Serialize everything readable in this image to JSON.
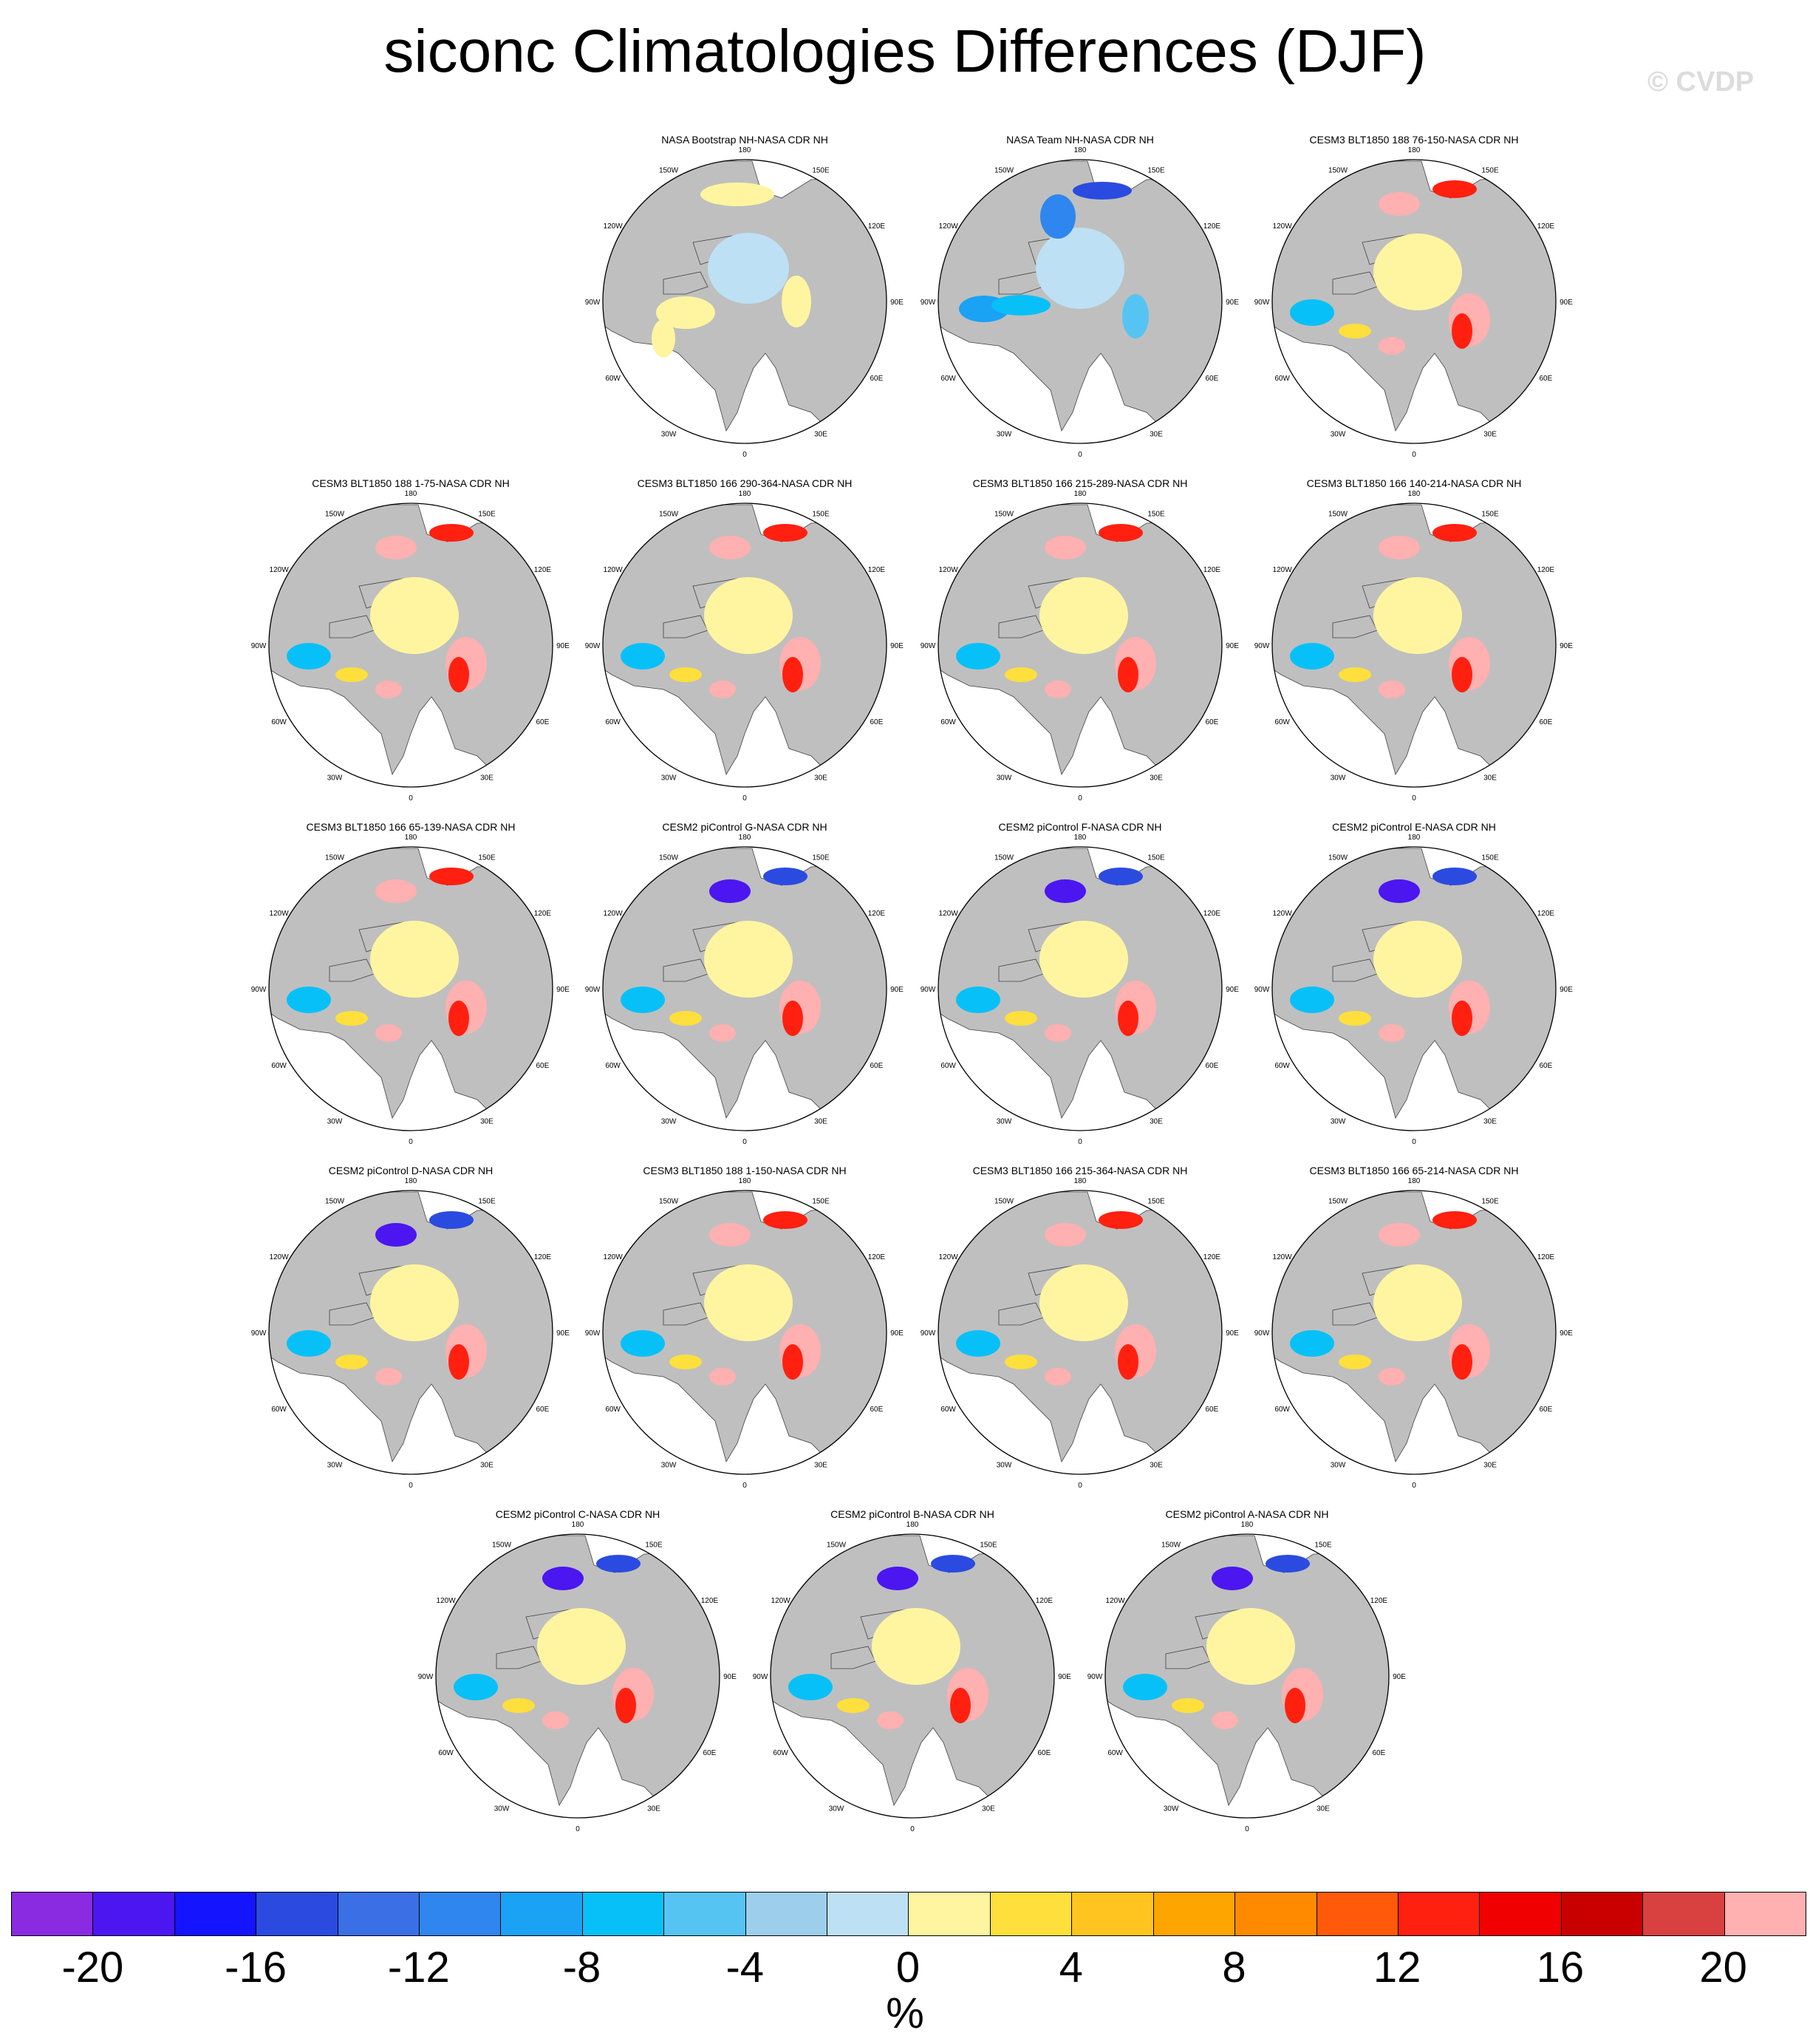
{
  "title": "siconc Climatologies Differences (DJF)",
  "watermark": "© CVDP",
  "lon_labels": [
    "180",
    "150E",
    "120E",
    "90E",
    "60E",
    "30E",
    "0",
    "30W",
    "60W",
    "90W",
    "120W",
    "150W"
  ],
  "panels": [
    {
      "title": "NASA Bootstrap NH-NASA CDR NH",
      "style": "bootstrap"
    },
    {
      "title": "NASA Team NH-NASA CDR NH",
      "style": "team"
    },
    {
      "title": "CESM3 BLT1850 188 76-150-NASA CDR NH",
      "style": "model"
    },
    {
      "title": "CESM3 BLT1850 188 1-75-NASA CDR NH",
      "style": "model"
    },
    {
      "title": "CESM3 BLT1850 166 290-364-NASA CDR NH",
      "style": "model"
    },
    {
      "title": "CESM3 BLT1850 166 215-289-NASA CDR NH",
      "style": "model"
    },
    {
      "title": "CESM3 BLT1850 166 140-214-NASA CDR NH",
      "style": "model"
    },
    {
      "title": "CESM3 BLT1850 166 65-139-NASA CDR NH",
      "style": "model"
    },
    {
      "title": "CESM2 piControl G-NASA CDR NH",
      "style": "cesm2"
    },
    {
      "title": "CESM2 piControl F-NASA CDR NH",
      "style": "cesm2"
    },
    {
      "title": "CESM2 piControl E-NASA CDR NH",
      "style": "cesm2"
    },
    {
      "title": "CESM2 piControl D-NASA CDR NH",
      "style": "cesm2"
    },
    {
      "title": "CESM3 BLT1850 188 1-150-NASA CDR NH",
      "style": "model"
    },
    {
      "title": "CESM3 BLT1850 166 215-364-NASA CDR NH",
      "style": "model"
    },
    {
      "title": "CESM3 BLT1850 166 65-214-NASA CDR NH",
      "style": "model"
    },
    {
      "title": "CESM2 piControl C-NASA CDR NH",
      "style": "cesm2"
    },
    {
      "title": "CESM2 piControl B-NASA CDR NH",
      "style": "cesm2"
    },
    {
      "title": "CESM2 piControl A-NASA CDR NH",
      "style": "cesm2"
    }
  ],
  "colorbar": {
    "colors": [
      "#8a2be2",
      "#4b16f0",
      "#1414ff",
      "#2b4be0",
      "#3a6fe6",
      "#2f86ee",
      "#1aa2f5",
      "#08c0f8",
      "#55c4f2",
      "#9dcfec",
      "#bde0f4",
      "#fff5a0",
      "#ffdf3c",
      "#ffc41f",
      "#ffa500",
      "#ff8a00",
      "#ff5a0a",
      "#ff2010",
      "#f00000",
      "#c80000",
      "#d94040",
      "#ffb0b0"
    ],
    "ticks": [
      "-20",
      "-16",
      "-12",
      "-8",
      "-4",
      "0",
      "4",
      "8",
      "12",
      "16",
      "20"
    ],
    "tick_levels": [
      -20,
      -16,
      -12,
      -8,
      -4,
      0,
      4,
      8,
      12,
      16,
      20
    ],
    "min": -22,
    "max": 22,
    "units": "%"
  }
}
